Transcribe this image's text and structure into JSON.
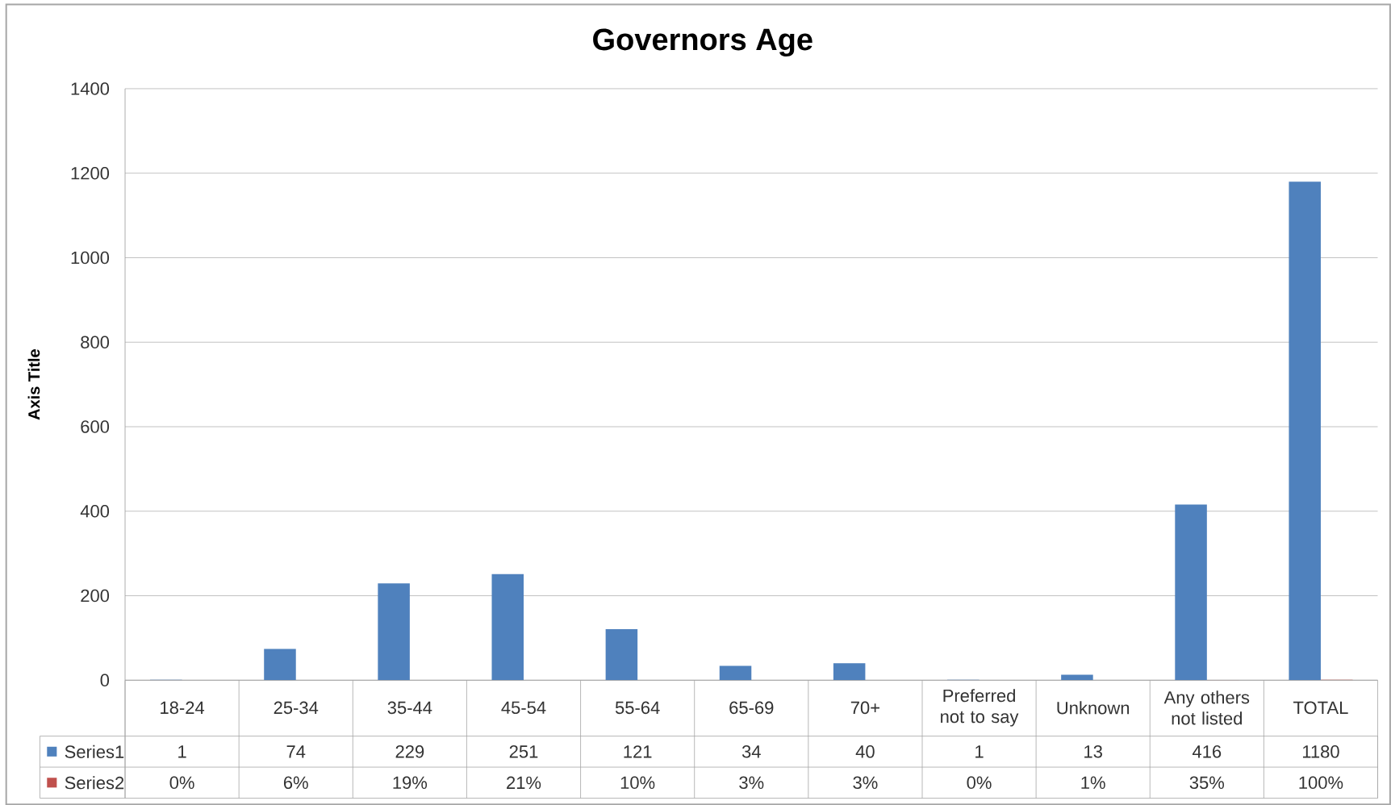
{
  "chart_data": {
    "type": "bar",
    "title": "Governors Age",
    "ylabel": "Axis Title",
    "categories": [
      "18-24",
      "25-34",
      "35-44",
      "45-54",
      "55-64",
      "65-69",
      "70+",
      "Preferred not to say",
      "Unknown",
      "Any others not listed",
      "TOTAL"
    ],
    "series": [
      {
        "name": "Series1",
        "color": "#4f81bd",
        "values": [
          1,
          74,
          229,
          251,
          121,
          34,
          40,
          1,
          13,
          416,
          1180
        ],
        "value_labels": [
          "1",
          "74",
          "229",
          "251",
          "121",
          "34",
          "40",
          "1",
          "13",
          "416",
          "1180"
        ]
      },
      {
        "name": "Series2",
        "color": "#c0504d",
        "values": [
          0,
          0.06,
          0.19,
          0.21,
          0.1,
          0.03,
          0.03,
          0,
          0.01,
          0.35,
          1
        ],
        "value_labels": [
          "0%",
          "6%",
          "19%",
          "21%",
          "10%",
          "3%",
          "3%",
          "0%",
          "1%",
          "35%",
          "100%"
        ]
      }
    ],
    "ylim": [
      0,
      1400
    ],
    "yticks": [
      0,
      200,
      400,
      600,
      800,
      1000,
      1200,
      1400
    ],
    "grid": "y",
    "legend": "bottom"
  }
}
